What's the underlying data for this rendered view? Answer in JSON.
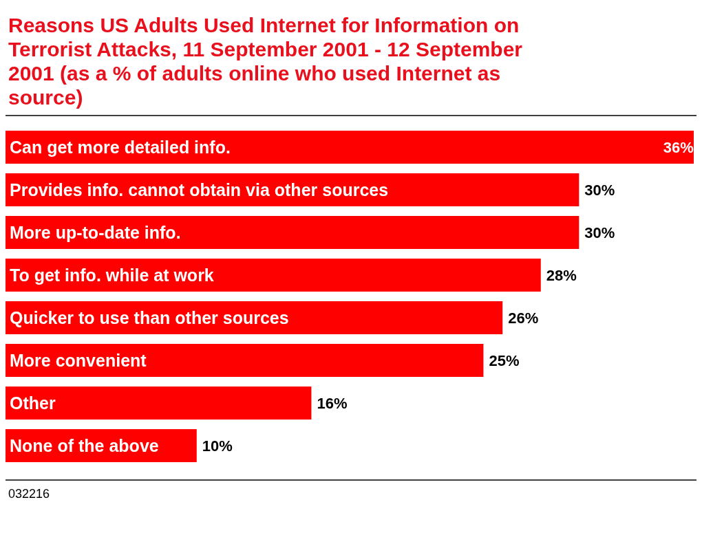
{
  "chart_data": {
    "type": "bar",
    "orientation": "horizontal",
    "title": "Reasons US Adults Used Internet for Information on Terrorist Attacks, 11 September 2001 - 12 September 2001 (as a % of adults online who used Internet as source)",
    "categories": [
      "Can get more detailed info.",
      "Provides info. cannot obtain via other sources",
      "More up-to-date info.",
      "To get info. while at work",
      "Quicker to use than other sources",
      "More convenient",
      "Other",
      "None of the above"
    ],
    "values": [
      36,
      30,
      30,
      28,
      26,
      25,
      16,
      10
    ],
    "value_labels": [
      "36%",
      "30%",
      "30%",
      "28%",
      "26%",
      "25%",
      "16%",
      "10%"
    ],
    "color": "#ff0000",
    "annotations": [
      "032216"
    ]
  }
}
